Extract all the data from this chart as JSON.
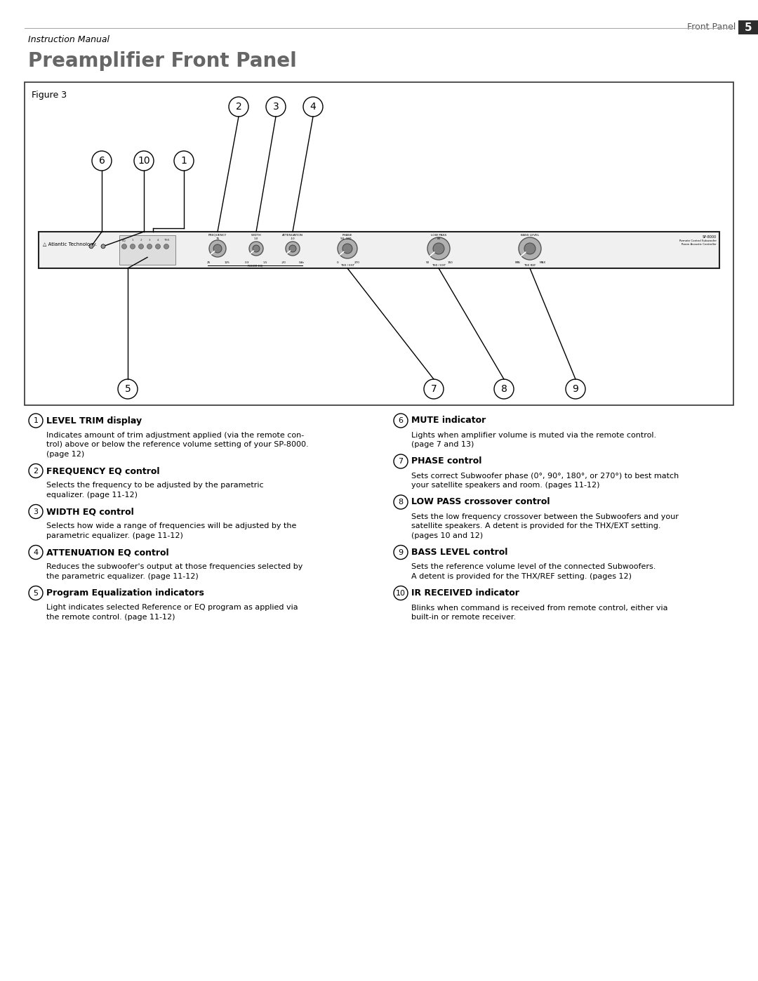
{
  "page_title": "Preamplifier Front Panel",
  "header_right": "Front Panel",
  "header_page_num": "5",
  "header_label": "Instruction Manual",
  "figure_label": "Figure 3",
  "bg_color": "#ffffff",
  "items": [
    {
      "num": "1",
      "title": "LEVEL TRIM display",
      "body": "Indicates amount of trim adjustment applied (via the remote con-\ntrol) above or below the reference volume setting of your SP-8000.\n(page 12)"
    },
    {
      "num": "2",
      "title": "FREQUENCY EQ control",
      "body": "Selects the frequency to be adjusted by the parametric\nequalizer. (page 11-12)"
    },
    {
      "num": "3",
      "title": "WIDTH EQ control",
      "body": "Selects how wide a range of frequencies will be adjusted by the\nparametric equalizer. (page 11-12)"
    },
    {
      "num": "4",
      "title": "ATTENUATION EQ control",
      "body": "Reduces the subwoofer's output at those frequencies selected by\nthe parametric equalizer. (page 11-12)"
    },
    {
      "num": "5",
      "title": "Program Equalization indicators",
      "body": "Light indicates selected Reference or EQ program as applied via\nthe remote control. (page 11-12)"
    },
    {
      "num": "6",
      "title": "MUTE indicator",
      "body": "Lights when amplifier volume is muted via the remote control.\n(page 7 and 13)"
    },
    {
      "num": "7",
      "title": "PHASE control",
      "body": "Sets correct Subwoofer phase (0°, 90°, 180°, or 270°) to best match\nyour satellite speakers and room. (pages 11-12)"
    },
    {
      "num": "8",
      "title": "LOW PASS crossover control",
      "body": "Sets the low frequency crossover between the Subwoofers and your\nsatellite speakers. A detent is provided for the THX/EXT setting.\n(pages 10 and 12)"
    },
    {
      "num": "9",
      "title": "BASS LEVEL control",
      "body": "Sets the reference volume level of the connected Subwoofers.\nA detent is provided for the THX/REF setting. (pages 12)"
    },
    {
      "num": "10",
      "title": "IR RECEIVED indicator",
      "body": "Blinks when command is received from remote control, either via\nbuilt-in or remote receiver."
    }
  ]
}
